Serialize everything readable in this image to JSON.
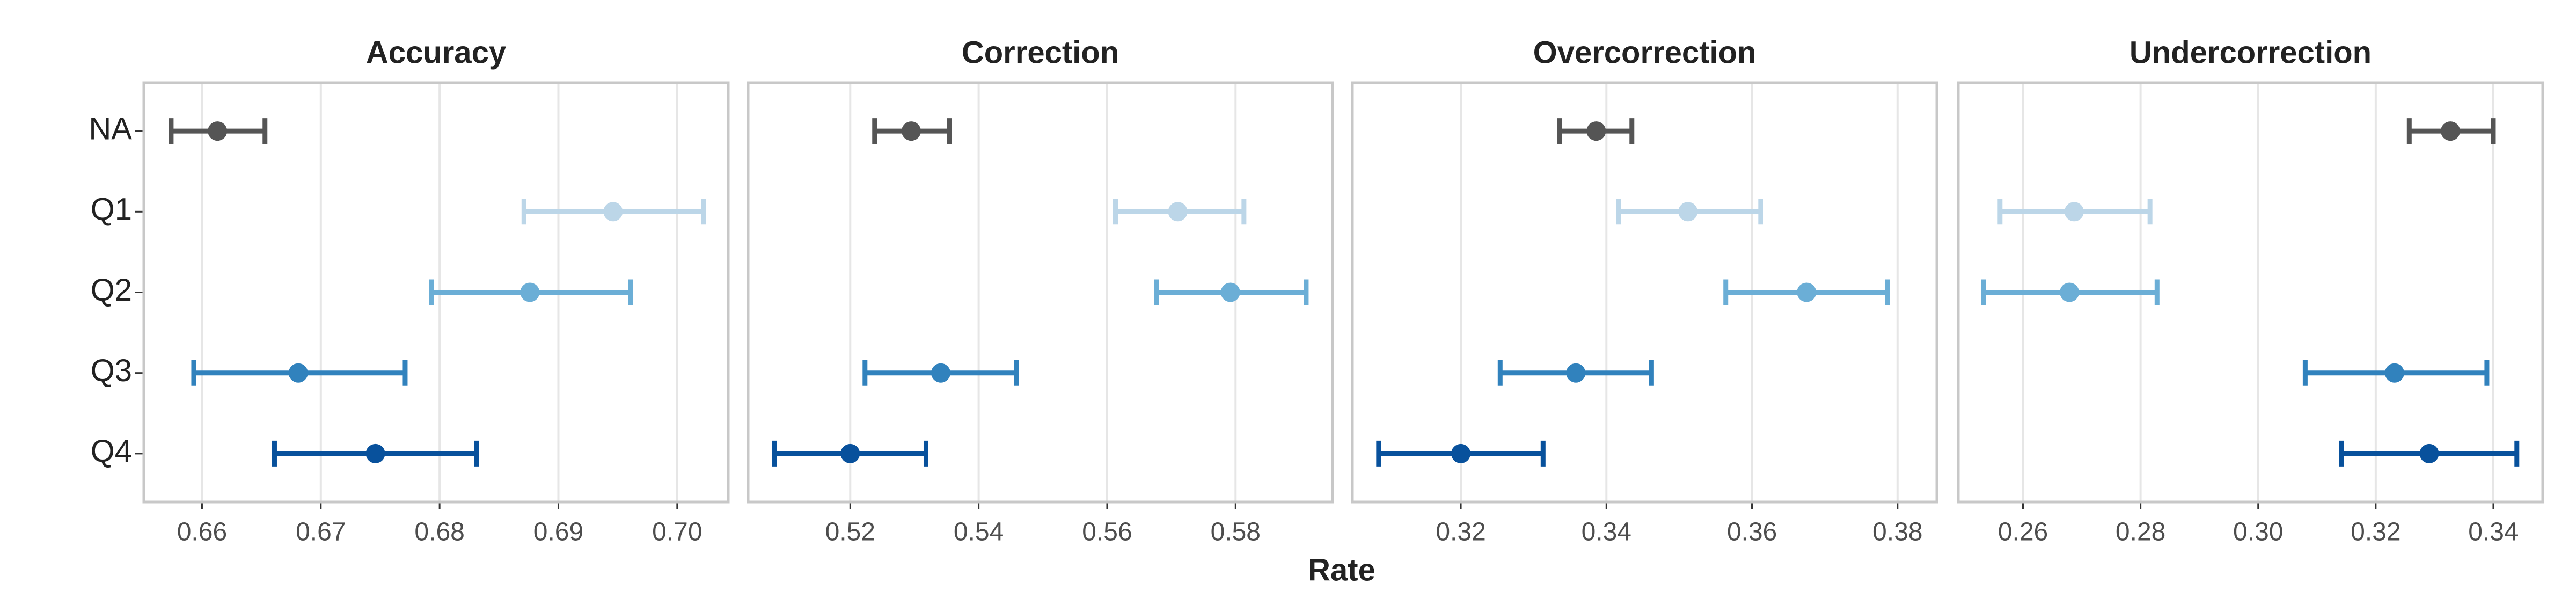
{
  "chart_data": {
    "type": "errorbar",
    "xlabel": "Rate",
    "categories": [
      "NA",
      "Q1",
      "Q2",
      "Q3",
      "Q4"
    ],
    "colors": [
      "#555555",
      "#bcd6e8",
      "#6baed6",
      "#3182bd",
      "#08519c"
    ],
    "grid": true,
    "panels": [
      {
        "title": "Accuracy",
        "xlim": [
          0.6551,
          0.7043
        ],
        "xticks": [
          0.66,
          0.67,
          0.68,
          0.69,
          {
            "value": 0.7,
            "label": "0.70"
          }
        ],
        "values": [
          0.6613,
          0.6946,
          0.6876,
          0.6681,
          0.6746
        ],
        "lower": [
          0.6574,
          0.6871,
          0.6793,
          0.6593,
          0.6661
        ],
        "upper": [
          0.6653,
          0.7022,
          0.6961,
          0.6771,
          0.6831
        ]
      },
      {
        "title": "Correction",
        "xlim": [
          0.5041,
          0.5951
        ],
        "xticks": [
          0.52,
          0.54,
          0.56,
          0.58
        ],
        "values": [
          0.5295,
          0.571,
          0.5792,
          0.5341,
          0.52
        ],
        "lower": [
          0.5238,
          0.5613,
          0.5677,
          0.5223,
          0.5082
        ],
        "upper": [
          0.5354,
          0.5813,
          0.591,
          0.5459,
          0.5318
        ]
      },
      {
        "title": "Overcorrection",
        "xlim": [
          0.3051,
          0.3854
        ],
        "xticks": [
          0.32,
          0.34,
          0.36,
          0.38
        ],
        "values": [
          0.3386,
          0.3512,
          0.3675,
          0.3358,
          0.32
        ],
        "lower": [
          0.3336,
          0.3417,
          0.3564,
          0.3254,
          0.3087
        ],
        "upper": [
          0.3435,
          0.3612,
          0.3786,
          0.3462,
          0.3313
        ]
      },
      {
        "title": "Undercorrection",
        "xlim": [
          0.249,
          0.3484
        ],
        "xticks": [
          0.26,
          0.28,
          {
            "value": 0.3,
            "label": "0.30"
          },
          0.32,
          0.34
        ],
        "values": [
          0.3327,
          0.2687,
          0.2679,
          0.3232,
          0.3291
        ],
        "lower": [
          0.3257,
          0.2561,
          0.2533,
          0.308,
          0.3142
        ],
        "upper": [
          0.34,
          0.2816,
          0.2828,
          0.3389,
          0.344
        ]
      }
    ]
  }
}
